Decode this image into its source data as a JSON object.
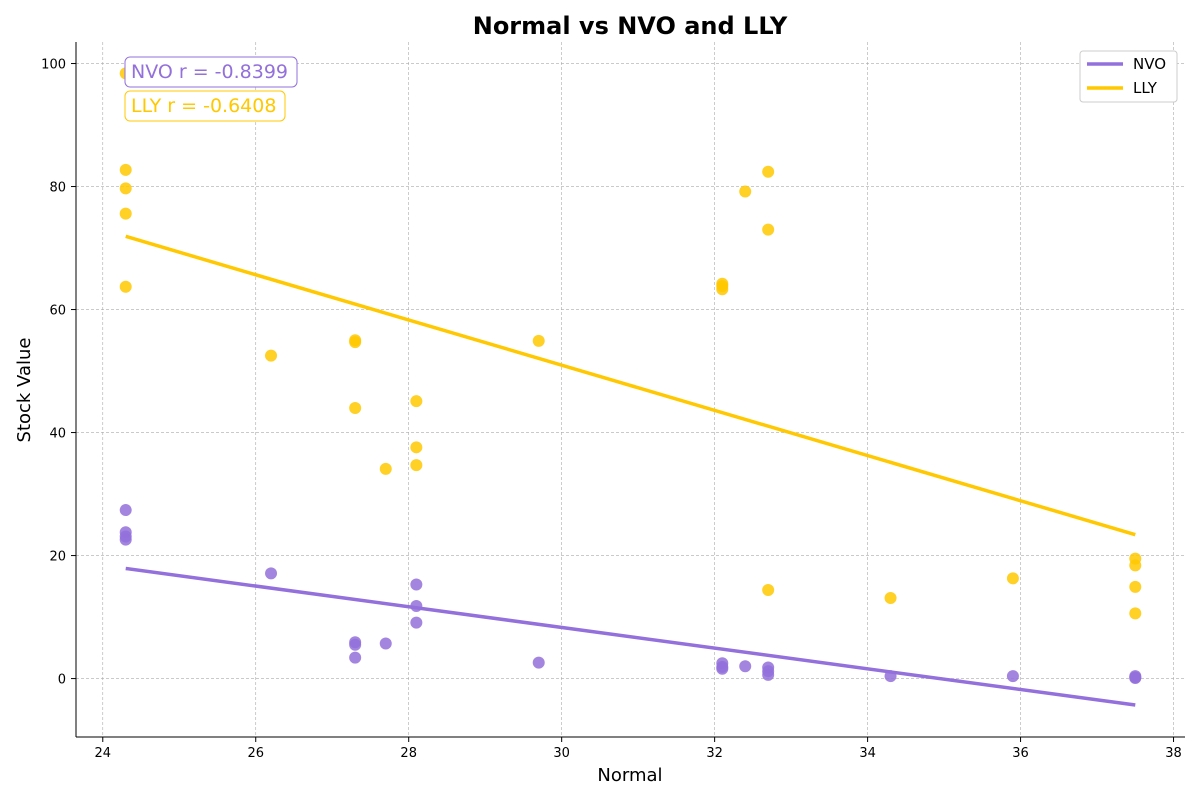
{
  "chart_data": {
    "type": "scatter",
    "title": "Normal vs NVO and LLY",
    "xlabel": "Normal",
    "ylabel": "Stock Value",
    "xlim": [
      23.65,
      38.15
    ],
    "ylim": [
      -9.5,
      103.5
    ],
    "xticks": [
      24,
      26,
      28,
      30,
      32,
      34,
      36,
      38
    ],
    "yticks": [
      0,
      20,
      40,
      60,
      80,
      100
    ],
    "grid": true,
    "legend_position": "top-right",
    "series": [
      {
        "name": "NVO",
        "color": "#9370DB",
        "points": [
          [
            24.3,
            27.4
          ],
          [
            24.3,
            23.8
          ],
          [
            24.3,
            23.1
          ],
          [
            24.3,
            22.6
          ],
          [
            26.2,
            17.1
          ],
          [
            27.3,
            5.9
          ],
          [
            27.3,
            5.5
          ],
          [
            27.3,
            3.4
          ],
          [
            27.7,
            5.7
          ],
          [
            28.1,
            15.3
          ],
          [
            28.1,
            11.8
          ],
          [
            28.1,
            9.1
          ],
          [
            29.7,
            2.6
          ],
          [
            32.1,
            2.5
          ],
          [
            32.1,
            1.9
          ],
          [
            32.1,
            1.6
          ],
          [
            32.4,
            2.0
          ],
          [
            32.7,
            1.8
          ],
          [
            32.7,
            1.2
          ],
          [
            32.7,
            0.6
          ],
          [
            34.3,
            0.4
          ],
          [
            35.9,
            0.4
          ],
          [
            37.5,
            0.4
          ],
          [
            37.5,
            0.2
          ],
          [
            37.5,
            0.1
          ]
        ],
        "fit": [
          [
            24.3,
            17.9
          ],
          [
            37.5,
            -4.3
          ]
        ],
        "annotation": "NVO r = -0.8399"
      },
      {
        "name": "LLY",
        "color": "#FFC800",
        "points": [
          [
            24.3,
            98.4
          ],
          [
            24.3,
            82.7
          ],
          [
            24.3,
            79.7
          ],
          [
            24.3,
            75.6
          ],
          [
            24.3,
            63.7
          ],
          [
            26.2,
            52.5
          ],
          [
            27.3,
            55.0
          ],
          [
            27.3,
            54.7
          ],
          [
            27.3,
            44.0
          ],
          [
            27.7,
            34.1
          ],
          [
            28.1,
            45.1
          ],
          [
            28.1,
            37.6
          ],
          [
            28.1,
            34.7
          ],
          [
            29.7,
            54.9
          ],
          [
            32.1,
            64.2
          ],
          [
            32.1,
            63.8
          ],
          [
            32.1,
            63.3
          ],
          [
            32.4,
            79.2
          ],
          [
            32.7,
            82.4
          ],
          [
            32.7,
            73.0
          ],
          [
            32.7,
            14.4
          ],
          [
            34.3,
            13.1
          ],
          [
            35.9,
            16.3
          ],
          [
            37.5,
            19.5
          ],
          [
            37.5,
            18.4
          ],
          [
            37.5,
            14.9
          ],
          [
            37.5,
            10.6
          ]
        ],
        "fit": [
          [
            24.3,
            71.9
          ],
          [
            37.5,
            23.4
          ]
        ],
        "annotation": "LLY r = -0.6408"
      }
    ]
  }
}
